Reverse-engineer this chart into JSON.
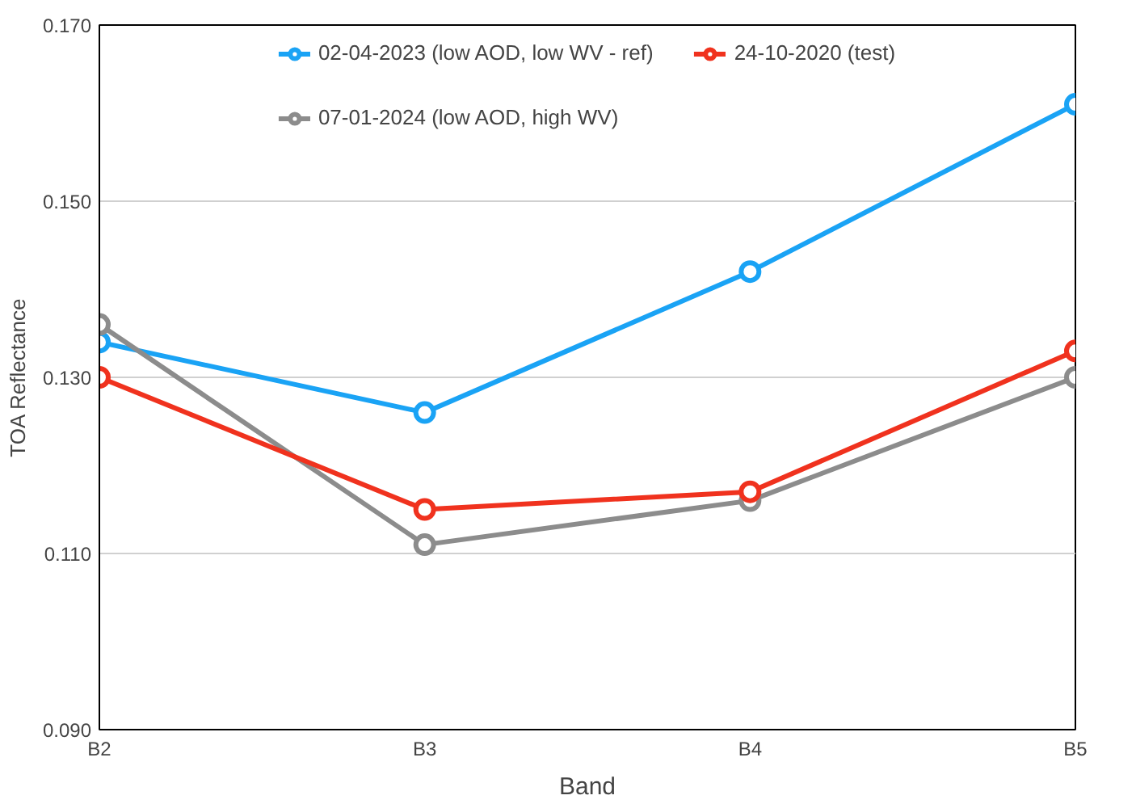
{
  "chart_data": {
    "type": "line",
    "xlabel": "Band",
    "ylabel": "TOA Reflectance",
    "categories": [
      "B2",
      "B3",
      "B4",
      "B5"
    ],
    "series": [
      {
        "name": "02-04-2023 (low AOD, low WV - ref)",
        "color": "#1aa3f5",
        "values": [
          0.134,
          0.126,
          0.142,
          0.161
        ]
      },
      {
        "name": "07-01-2024 (low AOD, high WV)",
        "color": "#8c8c8c",
        "values": [
          0.136,
          0.111,
          0.116,
          0.13
        ]
      },
      {
        "name": "24-10-2020 (test)",
        "color": "#f0321e",
        "values": [
          0.13,
          0.115,
          0.117,
          0.133
        ]
      }
    ],
    "ylim": [
      0.09,
      0.17
    ],
    "yticks": [
      {
        "value": 0.09,
        "label": "0.090"
      },
      {
        "value": 0.11,
        "label": "0.110"
      },
      {
        "value": 0.13,
        "label": "0.130"
      },
      {
        "value": 0.15,
        "label": "0.150"
      },
      {
        "value": 0.17,
        "label": "0.170"
      }
    ],
    "grid": "y",
    "legend": "top",
    "marker": "circle",
    "line_style": "solid"
  }
}
